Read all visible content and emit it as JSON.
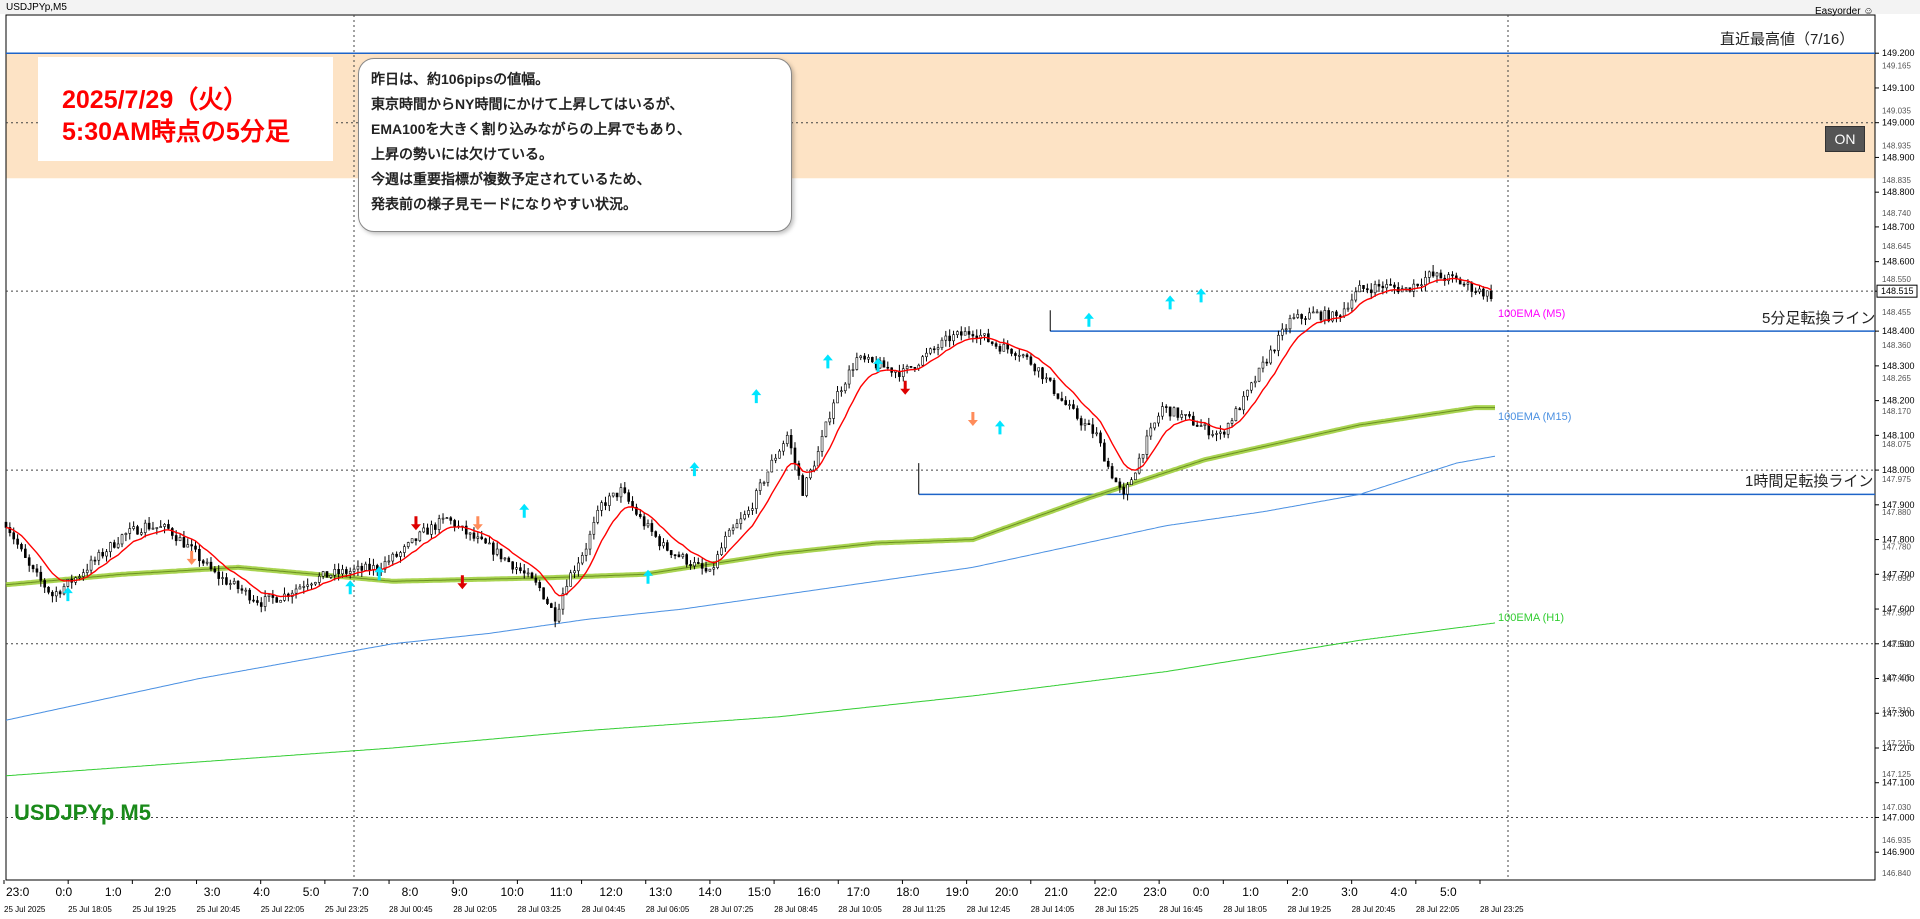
{
  "window": {
    "title": "USDJPYp,M5",
    "plugin": "Easyorder ☺"
  },
  "symbol_label": "USDJPYp M5",
  "date_box": {
    "line1": "2025/7/29（火）",
    "line2": "5:30AM時点の5分足"
  },
  "comment": {
    "lines": [
      "昨日は、約106pipsの値幅。",
      "東京時間からNY時間にかけて上昇してはいるが、",
      "EMA100を大きく割り込みながらの上昇でもあり、",
      "上昇の勢いには欠けている。",
      "今週は重要指標が複数予定されているため、",
      "発表前の様子見モードになりやすい状況。"
    ]
  },
  "on_button": "ON",
  "levels": {
    "recent_high": {
      "label": "直近最高値（7/16）",
      "price": 149.2
    },
    "m5_turn": {
      "label": "5分足転換ライン",
      "price": 148.4
    },
    "h1_turn": {
      "label": "1時間足転換ライン",
      "price": 147.93
    }
  },
  "ema_labels": {
    "m5": "100EMA (M5)",
    "m15": "100EMA (M15)",
    "h1": "100EMA (H1)"
  },
  "colors": {
    "candle": "#000000",
    "ema_m5": "#9acd32",
    "ema_m15": "#4a90e2",
    "ema_h1": "#32cd32",
    "fast_ma": "#ff0000",
    "zone": "#fde3c5",
    "level_line": "#1e64c8",
    "ema_m5_label": "#ff00ff",
    "ema_m15_label": "#4a90e2",
    "ema_h1_label": "#32cd32",
    "arrow_up": "#00e5ff",
    "arrow_down": "#dd0000",
    "arrow_orange": "#ff8c5a"
  },
  "chart_data": {
    "type": "candlestick",
    "y_axis": {
      "range": [
        146.82,
        149.31
      ],
      "ticks": [
        "149.200",
        "149.100",
        "149.000",
        "148.900",
        "148.800",
        "148.700",
        "148.600",
        "148.515",
        "148.400",
        "148.300",
        "148.200",
        "148.100",
        "148.000",
        "147.900",
        "147.800",
        "147.700",
        "147.600",
        "147.500",
        "147.400",
        "147.300",
        "147.200",
        "147.100",
        "147.000",
        "146.900"
      ],
      "minor_ticks": [
        "149.165",
        "149.035",
        "148.935",
        "148.835",
        "148.740",
        "148.645",
        "148.550",
        "148.455",
        "148.360",
        "148.265",
        "148.170",
        "148.075",
        "147.975",
        "147.880",
        "147.780",
        "147.690",
        "147.590",
        "147.500",
        "147.405",
        "147.310",
        "147.215",
        "147.125",
        "147.030",
        "146.935",
        "146.840"
      ],
      "current_price": "148.515"
    },
    "x_axis": {
      "hour_labels": [
        "23:0",
        "0:0",
        "1:0",
        "2:0",
        "3:0",
        "4:0",
        "5:0",
        "7:0",
        "8:0",
        "9:0",
        "10:0",
        "11:0",
        "12:0",
        "13:0",
        "14:0",
        "15:0",
        "16:0",
        "17:0",
        "18:0",
        "19:0",
        "20:0",
        "21:0",
        "22:0",
        "23:0",
        "0:0",
        "1:0",
        "2:0",
        "3:0",
        "4:0",
        "5:0"
      ],
      "date_labels": [
        "25 Jul 2025",
        "25 Jul 18:05",
        "25 Jul 19:25",
        "25 Jul 20:45",
        "25 Jul 22:05",
        "25 Jul 23:25",
        "28 Jul 00:45",
        "28 Jul 02:05",
        "28 Jul 03:25",
        "28 Jul 04:45",
        "28 Jul 06:05",
        "28 Jul 07:25",
        "28 Jul 08:45",
        "28 Jul 10:05",
        "28 Jul 11:25",
        "28 Jul 12:45",
        "28 Jul 14:05",
        "28 Jul 15:25",
        "28 Jul 16:45",
        "28 Jul 18:05",
        "28 Jul 19:25",
        "28 Jul 20:45",
        "28 Jul 22:05",
        "28 Jul 23:25"
      ]
    },
    "price_path": [
      [
        0,
        147.85
      ],
      [
        12,
        147.72
      ],
      [
        24,
        147.64
      ],
      [
        36,
        147.69
      ],
      [
        48,
        147.75
      ],
      [
        60,
        147.81
      ],
      [
        72,
        147.84
      ],
      [
        84,
        147.83
      ],
      [
        96,
        147.77
      ],
      [
        108,
        147.7
      ],
      [
        120,
        147.66
      ],
      [
        132,
        147.62
      ],
      [
        144,
        147.64
      ],
      [
        156,
        147.68
      ],
      [
        168,
        147.7
      ],
      [
        180,
        147.71
      ],
      [
        192,
        147.72
      ],
      [
        204,
        147.76
      ],
      [
        216,
        147.82
      ],
      [
        228,
        147.86
      ],
      [
        240,
        147.81
      ],
      [
        252,
        147.77
      ],
      [
        264,
        147.72
      ],
      [
        276,
        147.66
      ],
      [
        284,
        147.58
      ],
      [
        290,
        147.68
      ],
      [
        300,
        147.78
      ],
      [
        308,
        147.9
      ],
      [
        318,
        147.94
      ],
      [
        328,
        147.86
      ],
      [
        340,
        147.78
      ],
      [
        352,
        147.74
      ],
      [
        364,
        147.7
      ],
      [
        372,
        147.8
      ],
      [
        384,
        147.88
      ],
      [
        396,
        148.02
      ],
      [
        404,
        148.1
      ],
      [
        412,
        147.94
      ],
      [
        420,
        148.05
      ],
      [
        428,
        148.2
      ],
      [
        440,
        148.32
      ],
      [
        452,
        148.3
      ],
      [
        464,
        148.28
      ],
      [
        476,
        148.33
      ],
      [
        488,
        148.38
      ],
      [
        500,
        148.4
      ],
      [
        512,
        148.36
      ],
      [
        524,
        148.34
      ],
      [
        534,
        148.29
      ],
      [
        546,
        148.2
      ],
      [
        556,
        148.14
      ],
      [
        564,
        148.1
      ],
      [
        570,
        148.01
      ],
      [
        578,
        147.92
      ],
      [
        588,
        148.06
      ],
      [
        598,
        148.18
      ],
      [
        610,
        148.15
      ],
      [
        620,
        148.12
      ],
      [
        628,
        148.1
      ],
      [
        640,
        148.2
      ],
      [
        652,
        148.32
      ],
      [
        664,
        148.43
      ],
      [
        676,
        148.45
      ],
      [
        688,
        148.44
      ],
      [
        700,
        148.52
      ],
      [
        712,
        148.53
      ],
      [
        724,
        148.52
      ],
      [
        736,
        148.56
      ],
      [
        748,
        148.55
      ],
      [
        760,
        148.52
      ],
      [
        770,
        148.5
      ]
    ],
    "ema_m5": [
      [
        0,
        147.67
      ],
      [
        60,
        147.7
      ],
      [
        120,
        147.72
      ],
      [
        200,
        147.68
      ],
      [
        280,
        147.69
      ],
      [
        330,
        147.7
      ],
      [
        400,
        147.76
      ],
      [
        450,
        147.79
      ],
      [
        500,
        147.8
      ],
      [
        560,
        147.92
      ],
      [
        620,
        148.03
      ],
      [
        700,
        148.13
      ],
      [
        760,
        148.18
      ]
    ],
    "ema_m15": [
      [
        0,
        147.28
      ],
      [
        50,
        147.34
      ],
      [
        100,
        147.4
      ],
      [
        150,
        147.45
      ],
      [
        200,
        147.5
      ],
      [
        250,
        147.53
      ],
      [
        300,
        147.57
      ],
      [
        350,
        147.6
      ],
      [
        400,
        147.64
      ],
      [
        450,
        147.68
      ],
      [
        500,
        147.72
      ],
      [
        550,
        147.78
      ],
      [
        600,
        147.84
      ],
      [
        650,
        147.88
      ],
      [
        700,
        147.93
      ],
      [
        750,
        148.02
      ],
      [
        770,
        148.04
      ]
    ],
    "ema_h1": [
      [
        0,
        147.12
      ],
      [
        100,
        147.16
      ],
      [
        200,
        147.2
      ],
      [
        300,
        147.25
      ],
      [
        400,
        147.29
      ],
      [
        500,
        147.35
      ],
      [
        600,
        147.42
      ],
      [
        700,
        147.51
      ],
      [
        770,
        147.56
      ]
    ],
    "signals": [
      {
        "type": "up",
        "x": 32,
        "price": 147.64
      },
      {
        "type": "orange_down",
        "x": 96,
        "price": 147.75
      },
      {
        "type": "up",
        "x": 178,
        "price": 147.66
      },
      {
        "type": "up",
        "x": 193,
        "price": 147.7
      },
      {
        "type": "down",
        "x": 212,
        "price": 147.85
      },
      {
        "type": "down",
        "x": 236,
        "price": 147.68
      },
      {
        "type": "orange_down",
        "x": 244,
        "price": 147.85
      },
      {
        "type": "up",
        "x": 268,
        "price": 147.88
      },
      {
        "type": "up",
        "x": 332,
        "price": 147.69
      },
      {
        "type": "up",
        "x": 356,
        "price": 148.0
      },
      {
        "type": "up",
        "x": 388,
        "price": 148.21
      },
      {
        "type": "up",
        "x": 425,
        "price": 148.31
      },
      {
        "type": "up",
        "x": 451,
        "price": 148.3
      },
      {
        "type": "down",
        "x": 465,
        "price": 148.24
      },
      {
        "type": "orange_down",
        "x": 500,
        "price": 148.15
      },
      {
        "type": "up",
        "x": 514,
        "price": 148.12
      },
      {
        "type": "up",
        "x": 560,
        "price": 148.43
      },
      {
        "type": "up",
        "x": 602,
        "price": 148.48
      },
      {
        "type": "up",
        "x": 618,
        "price": 148.5
      }
    ]
  }
}
